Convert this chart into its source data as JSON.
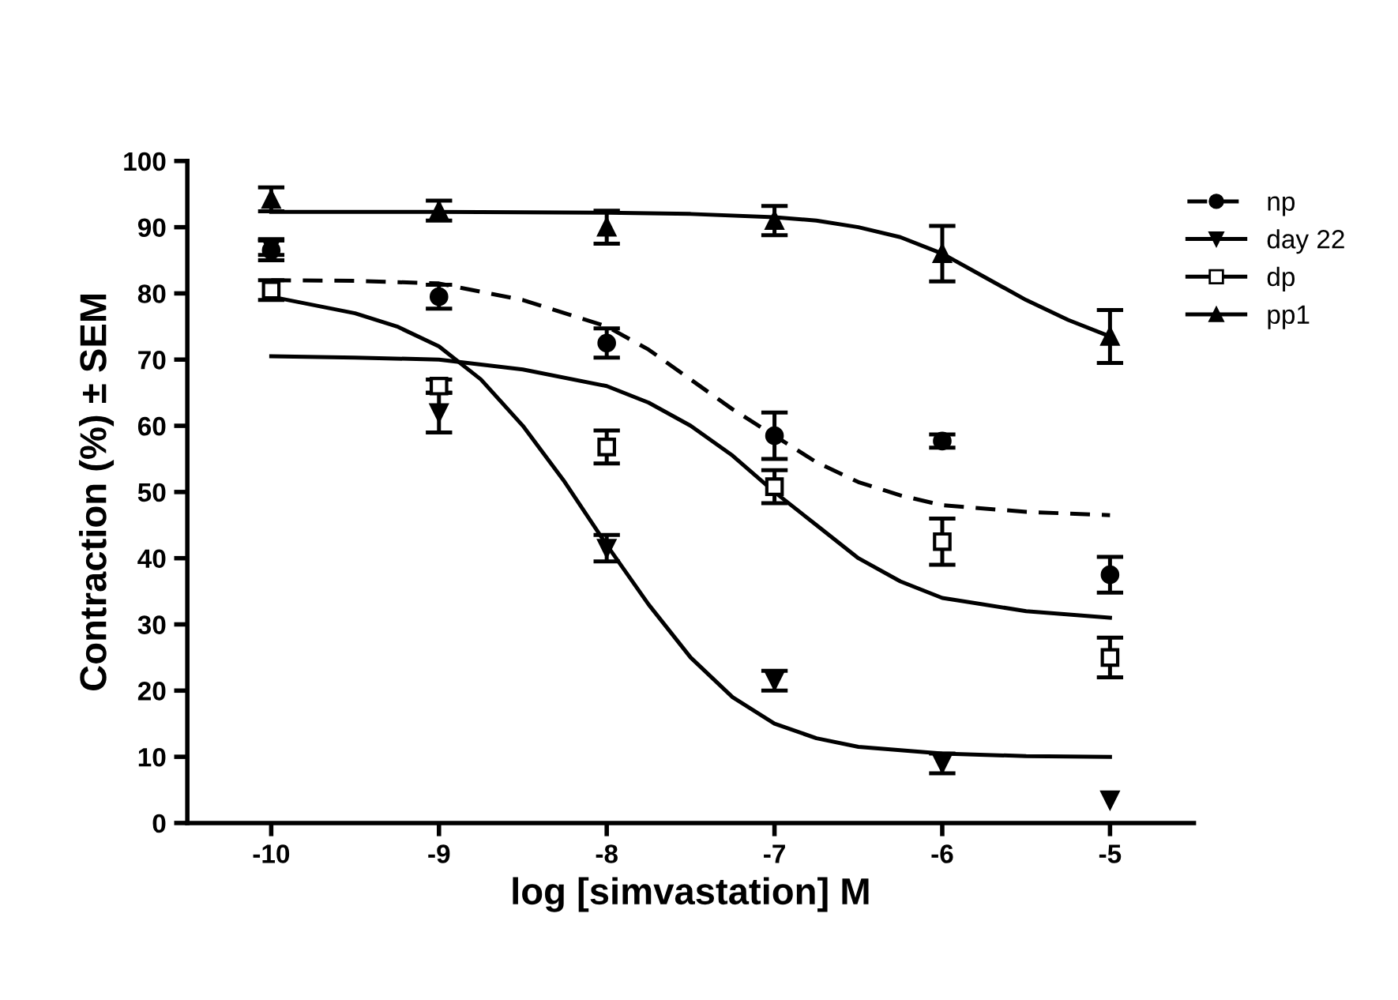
{
  "chart_data": {
    "type": "scatter",
    "xlabel": "log [simvastation] M",
    "ylabel": "Contraction (%) ± SEM",
    "xlim": [
      -10.5,
      -4.5
    ],
    "ylim": [
      0,
      100
    ],
    "xticks": [
      -10,
      -9,
      -8,
      -7,
      -6,
      -5
    ],
    "yticks": [
      0,
      10,
      20,
      30,
      40,
      50,
      60,
      70,
      80,
      90,
      100
    ],
    "grid": false,
    "legend": "right",
    "series": [
      {
        "name": "np",
        "color": "#000000",
        "marker": "circle",
        "line_style": "dashed",
        "x": [
          -10,
          -9,
          -8,
          -7,
          -6,
          -5
        ],
        "values": [
          86.5,
          79.5,
          72.5,
          58.5,
          57.7,
          37.5
        ],
        "errors": [
          1.5,
          1.8,
          2.2,
          3.5,
          1,
          2.7
        ]
      },
      {
        "name": "day 22",
        "color": "#000000",
        "marker": "triangle down",
        "line_style": "solid",
        "x": [
          -10,
          -9,
          -8,
          -7,
          -6,
          -5
        ],
        "values": [
          87,
          62,
          41.5,
          21.5,
          9,
          3.5
        ],
        "errors": [
          1.2,
          3,
          2,
          1.5,
          1.5,
          null
        ]
      },
      {
        "name": "dp",
        "color": "#000000",
        "marker": "square",
        "line_style": "solid",
        "x": [
          -10,
          -9,
          -8,
          -7,
          -6,
          -5
        ],
        "values": [
          80.5,
          66,
          56.8,
          50.8,
          42.5,
          25
        ],
        "errors": [
          1.5,
          1,
          2.5,
          2.5,
          3.5,
          3
        ]
      },
      {
        "name": "pp1",
        "color": "#000000",
        "marker": "triangle",
        "line_style": "solid",
        "x": [
          -10,
          -9,
          -8,
          -7,
          -6,
          -5
        ],
        "values": [
          94.2,
          92.5,
          90,
          91,
          86,
          73.5
        ],
        "errors": [
          1.8,
          1.5,
          2.5,
          2.2,
          4.2,
          4
        ]
      },
      {
        "type": "line",
        "color": "#000000",
        "line_style": "dashed",
        "x": [
          -10,
          -9.5,
          -9,
          -8.5,
          -8,
          -7.75,
          -7.5,
          -7.25,
          -7,
          -6.75,
          -6.5,
          -6.25,
          -6,
          -5.5,
          -5
        ],
        "values": [
          82,
          81.9,
          81.5,
          79,
          75,
          71.5,
          67,
          62.5,
          58.5,
          54.5,
          51.5,
          49.5,
          48,
          47,
          46.5
        ]
      },
      {
        "type": "line",
        "color": "#000000",
        "line_style": "solid",
        "x": [
          -10,
          -9.5,
          -9.25,
          -9,
          -8.75,
          -8.5,
          -8.25,
          -8,
          -7.75,
          -7.5,
          -7.25,
          -7,
          -6.75,
          -6.5,
          -6,
          -5.5,
          -5
        ],
        "values": [
          79.5,
          77,
          75,
          72,
          67,
          60,
          51.5,
          42,
          33,
          25,
          19,
          15,
          12.8,
          11.5,
          10.5,
          10.1,
          10
        ]
      },
      {
        "type": "line",
        "color": "#000000",
        "line_style": "solid",
        "x": [
          -10,
          -9.5,
          -9,
          -8.5,
          -8,
          -7.75,
          -7.5,
          -7.25,
          -7,
          -6.75,
          -6.5,
          -6.25,
          -6,
          -5.5,
          -5
        ],
        "values": [
          70.5,
          70.3,
          70,
          68.5,
          66,
          63.5,
          60,
          55.5,
          50,
          45,
          40,
          36.5,
          34,
          32,
          31
        ]
      },
      {
        "type": "line",
        "color": "#000000",
        "line_style": "solid",
        "x": [
          -10,
          -9,
          -8,
          -7.5,
          -7,
          -6.75,
          -6.5,
          -6.25,
          -6,
          -5.75,
          -5.5,
          -5.25,
          -5
        ],
        "values": [
          92.3,
          92.3,
          92.2,
          92,
          91.5,
          91,
          90,
          88.5,
          86,
          82.5,
          79,
          76,
          73.5
        ]
      }
    ]
  }
}
